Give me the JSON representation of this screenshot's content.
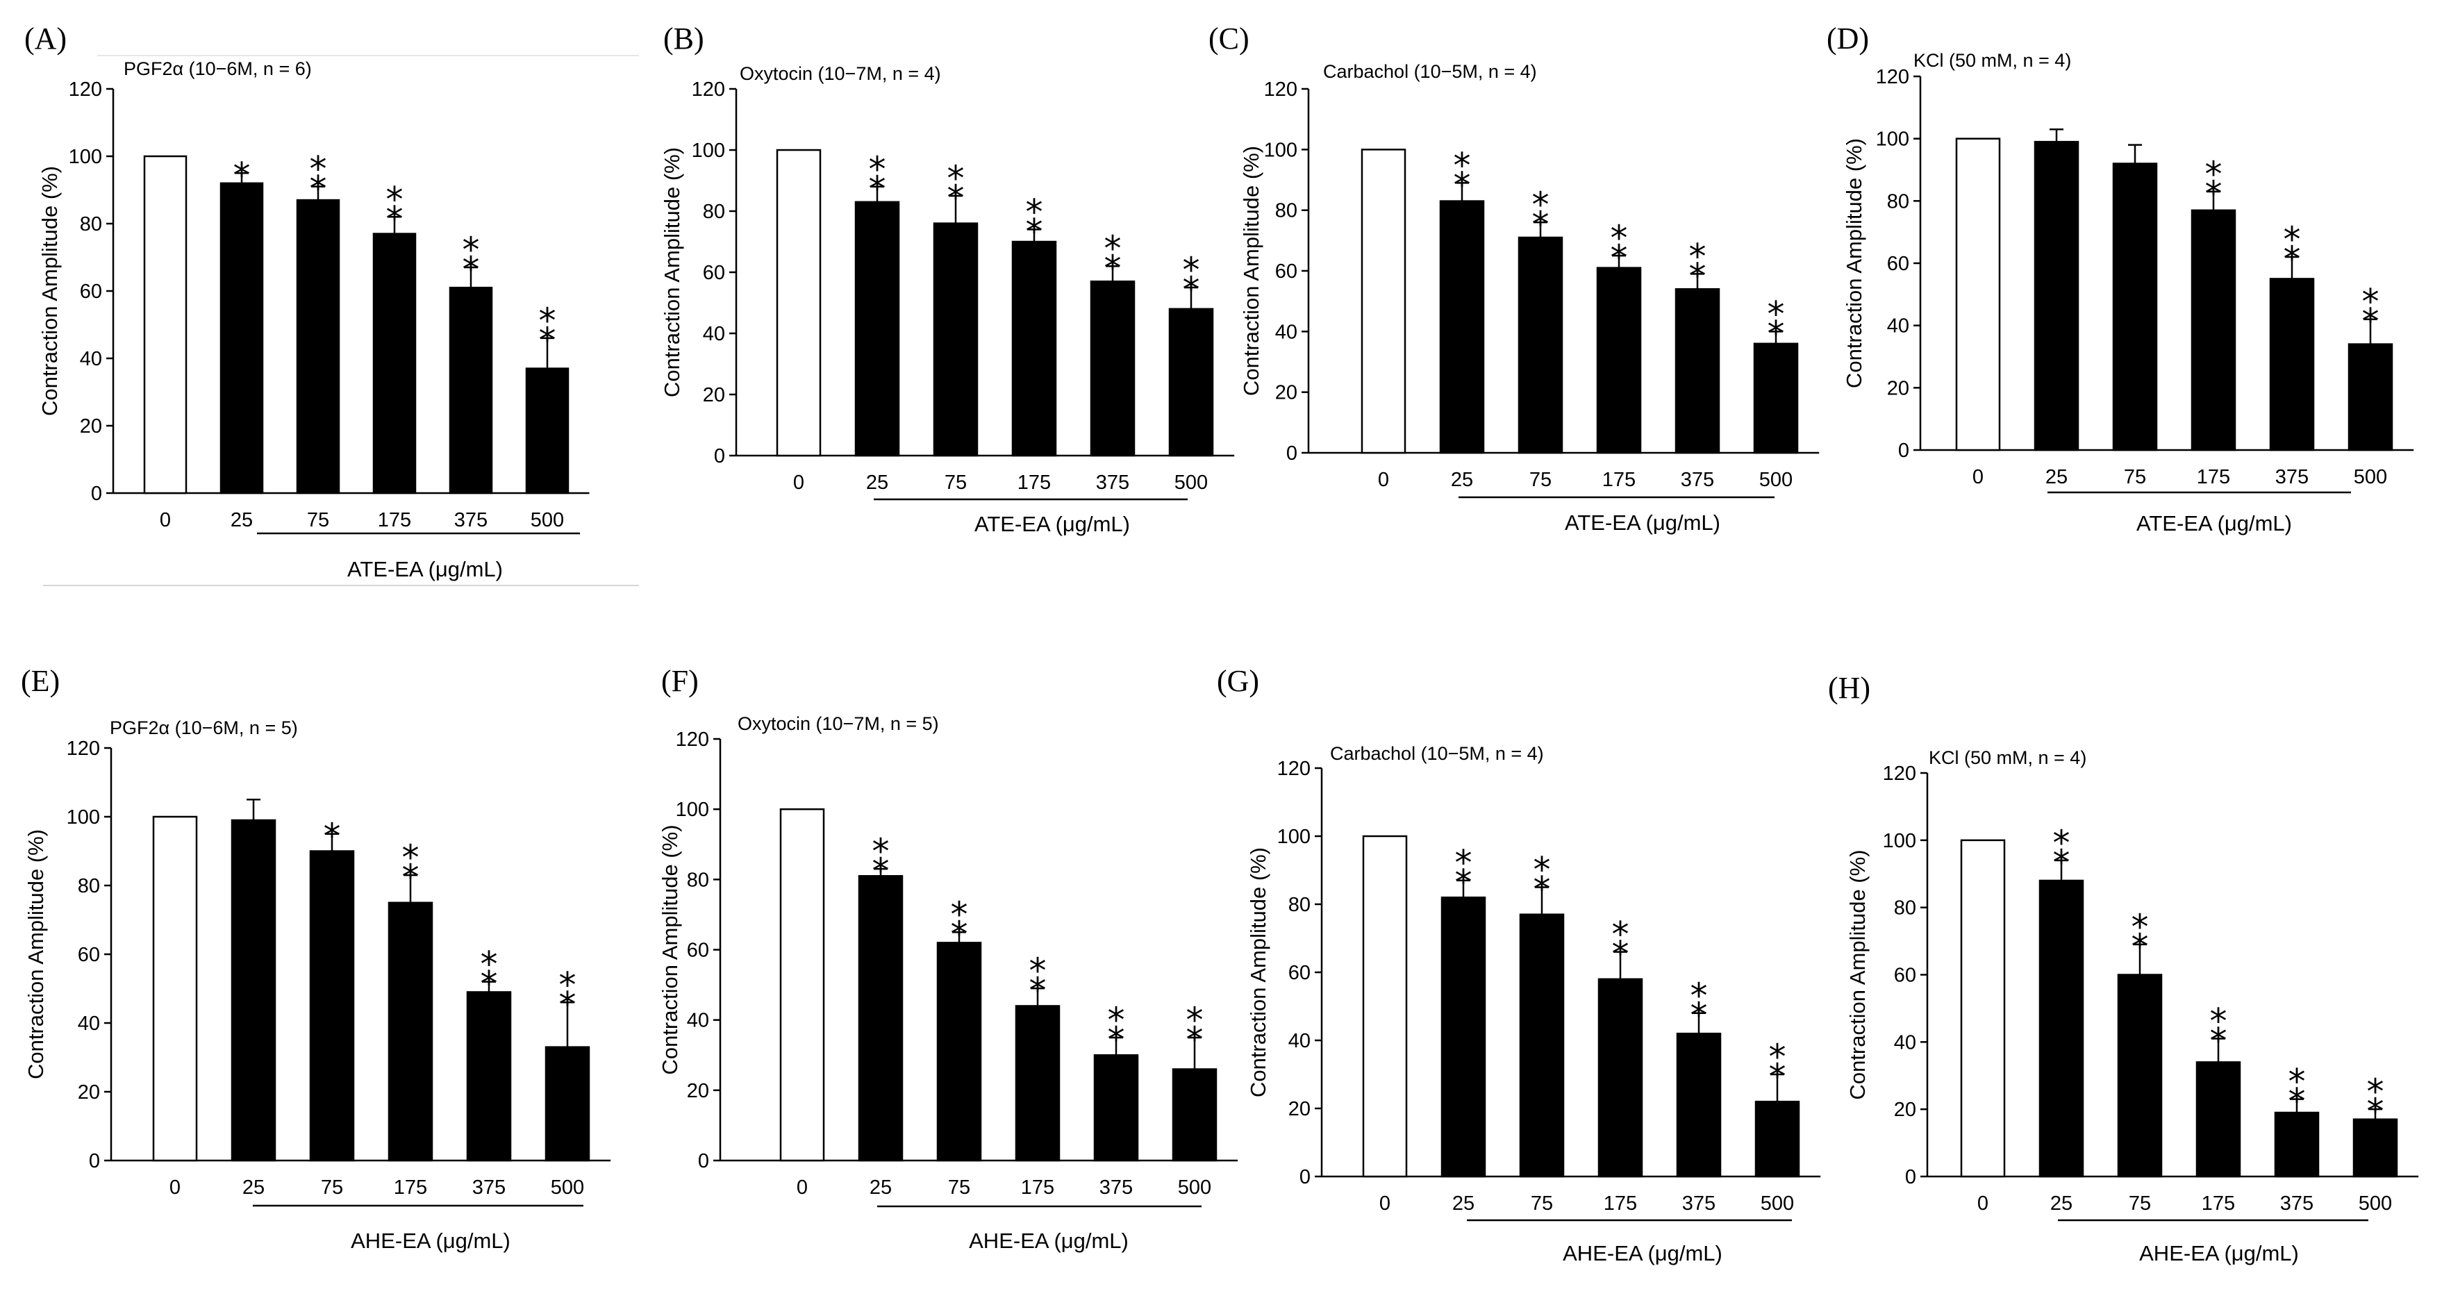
{
  "chart_data": [
    {
      "type": "bar",
      "panel": "(A)",
      "condition": "PGF2α (10−6M, n = 6)",
      "ylabel": "Contraction Amplitude (%)",
      "xlabel": "ATE-EA (μg/mL)",
      "categories": [
        "0",
        "25",
        "75",
        "175",
        "375",
        "500"
      ],
      "values": [
        100,
        92,
        87,
        77,
        61,
        37
      ],
      "errors": [
        0,
        3,
        4,
        5,
        6,
        9
      ],
      "stars": [
        "",
        "*",
        "**",
        "**",
        "**",
        "**"
      ],
      "ylim": [
        0,
        120
      ],
      "yticks": [
        "0",
        "20",
        "40",
        "60",
        "80",
        "100",
        "120"
      ]
    },
    {
      "type": "bar",
      "panel": "(B)",
      "condition": "Oxytocin (10−7M, n = 4)",
      "ylabel": "Contraction Amplitude (%)",
      "xlabel": "ATE-EA (μg/mL)",
      "categories": [
        "0",
        "25",
        "75",
        "175",
        "375",
        "500"
      ],
      "values": [
        100,
        83,
        76,
        70,
        57,
        48
      ],
      "errors": [
        0,
        5,
        9,
        4,
        5,
        7
      ],
      "stars": [
        "",
        "**",
        "**",
        "**",
        "**",
        "**"
      ],
      "ylim": [
        0,
        120
      ],
      "yticks": [
        "0",
        "20",
        "40",
        "60",
        "80",
        "100",
        "120"
      ]
    },
    {
      "type": "bar",
      "panel": "(C)",
      "condition": "Carbachol (10−5M, n = 4)",
      "ylabel": "Contraction Amplitude (%)",
      "xlabel": "ATE-EA (μg/mL)",
      "categories": [
        "0",
        "25",
        "75",
        "175",
        "375",
        "500"
      ],
      "values": [
        100,
        83,
        71,
        61,
        54,
        36
      ],
      "errors": [
        0,
        6,
        5,
        4,
        5,
        4
      ],
      "stars": [
        "",
        "**",
        "**",
        "**",
        "**",
        "**"
      ],
      "ylim": [
        0,
        120
      ],
      "yticks": [
        "0",
        "20",
        "40",
        "60",
        "80",
        "100",
        "120"
      ]
    },
    {
      "type": "bar",
      "panel": "(D)",
      "condition": "KCl (50 mM, n = 4)",
      "ylabel": "Contraction Amplitude (%)",
      "xlabel": "ATE-EA (μg/mL)",
      "categories": [
        "0",
        "25",
        "75",
        "175",
        "375",
        "500"
      ],
      "values": [
        100,
        99,
        92,
        77,
        55,
        34
      ],
      "errors": [
        0,
        4,
        6,
        6,
        7,
        8
      ],
      "stars": [
        "",
        "",
        "",
        "**",
        "**",
        "**"
      ],
      "ylim": [
        0,
        120
      ],
      "yticks": [
        "0",
        "20",
        "40",
        "60",
        "80",
        "100",
        "120"
      ]
    },
    {
      "type": "bar",
      "panel": "(E)",
      "condition": "PGF2α (10−6M, n = 5)",
      "ylabel": "Contraction Amplitude (%)",
      "xlabel": "AHE-EA (μg/mL)",
      "categories": [
        "0",
        "25",
        "75",
        "175",
        "375",
        "500"
      ],
      "values": [
        100,
        99,
        90,
        75,
        49,
        33
      ],
      "errors": [
        0,
        6,
        5,
        8,
        3,
        13
      ],
      "stars": [
        "",
        "",
        "*",
        "**",
        "**",
        "**"
      ],
      "ylim": [
        0,
        120
      ],
      "yticks": [
        "0",
        "20",
        "40",
        "60",
        "80",
        "100",
        "120"
      ]
    },
    {
      "type": "bar",
      "panel": "(F)",
      "condition": "Oxytocin (10−7M, n = 5)",
      "ylabel": "Contraction Amplitude (%)",
      "xlabel": "AHE-EA (μg/mL)",
      "categories": [
        "0",
        "25",
        "75",
        "175",
        "375",
        "500"
      ],
      "values": [
        100,
        81,
        62,
        44,
        30,
        26
      ],
      "errors": [
        0,
        2,
        3,
        5,
        5,
        9
      ],
      "stars": [
        "",
        "**",
        "**",
        "**",
        "**",
        "**"
      ],
      "ylim": [
        0,
        120
      ],
      "yticks": [
        "0",
        "20",
        "40",
        "60",
        "80",
        "100",
        "120"
      ]
    },
    {
      "type": "bar",
      "panel": "(G)",
      "condition": "Carbachol (10−5M, n = 4)",
      "ylabel": "Contraction Amplitude (%)",
      "xlabel": "AHE-EA (μg/mL)",
      "categories": [
        "0",
        "25",
        "75",
        "175",
        "375",
        "500"
      ],
      "values": [
        100,
        82,
        77,
        58,
        42,
        22
      ],
      "errors": [
        0,
        5,
        8,
        8,
        6,
        8
      ],
      "stars": [
        "",
        "**",
        "**",
        "**",
        "**",
        "**"
      ],
      "ylim": [
        0,
        120
      ],
      "yticks": [
        "0",
        "20",
        "40",
        "60",
        "80",
        "100",
        "120"
      ]
    },
    {
      "type": "bar",
      "panel": "(H)",
      "condition": "KCl (50 mM, n = 4)",
      "ylabel": "Contraction Amplitude (%)",
      "xlabel": "AHE-EA (μg/mL)",
      "categories": [
        "0",
        "25",
        "75",
        "175",
        "375",
        "500"
      ],
      "values": [
        100,
        88,
        60,
        34,
        19,
        17
      ],
      "errors": [
        0,
        6,
        9,
        7,
        4,
        3
      ],
      "stars": [
        "",
        "**",
        "**",
        "**",
        "**",
        "**"
      ],
      "ylim": [
        0,
        120
      ],
      "yticks": [
        "0",
        "20",
        "40",
        "60",
        "80",
        "100",
        "120"
      ]
    }
  ]
}
